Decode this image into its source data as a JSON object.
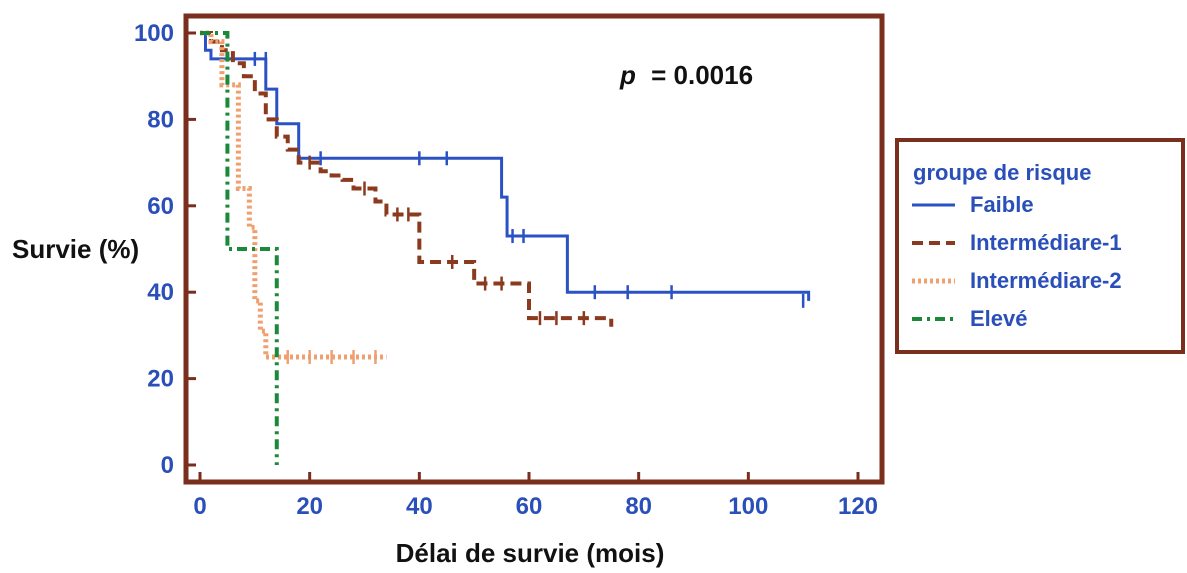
{
  "chart_data": {
    "type": "line",
    "xlabel": "Délai de survie (mois)",
    "ylabel": "Survie (%)",
    "xlim": [
      0,
      120
    ],
    "ylim": [
      0,
      100
    ],
    "x_ticks": [
      0,
      20,
      40,
      60,
      80,
      100,
      120
    ],
    "y_ticks": [
      0,
      20,
      40,
      60,
      80,
      100
    ],
    "grid": false,
    "legend_position": "right",
    "annotation": {
      "p_label": "p",
      "p_value": "= 0.0016"
    },
    "legend": {
      "title": "groupe de risque"
    },
    "colors": {
      "frame": "#7a2e1e",
      "tick_text": "#2a4fb8",
      "legend_title": "#2a4fb8",
      "legend_text": "#2a4fb8"
    },
    "series": [
      {
        "name": "Faible",
        "color": "#2b52c4",
        "dash": "solid",
        "x": [
          0,
          1,
          2,
          10,
          12,
          14,
          17,
          18,
          54,
          55,
          56,
          67,
          111
        ],
        "y": [
          100,
          96,
          94,
          94,
          87,
          79,
          79,
          71,
          71,
          62,
          53,
          40,
          38
        ],
        "censor_x": [
          10,
          12,
          22,
          40,
          45,
          57,
          59,
          72,
          78,
          86,
          110
        ],
        "censor_y": [
          94,
          94,
          71,
          71,
          71,
          53,
          53,
          40,
          40,
          40,
          38
        ]
      },
      {
        "name": "Intermédiare-1",
        "color": "#8b3a1e",
        "dash": "dashed",
        "x": [
          0,
          2,
          4,
          6,
          8,
          10,
          12,
          14,
          16,
          18,
          22,
          24,
          26,
          28,
          32,
          34,
          38,
          40,
          48,
          50,
          58,
          60,
          75
        ],
        "y": [
          100,
          98,
          96,
          93,
          90,
          86,
          80,
          76,
          73,
          70,
          68,
          67,
          66,
          64,
          61,
          58,
          58,
          47,
          47,
          42,
          42,
          34,
          32
        ],
        "censor_x": [
          20,
          30,
          36,
          38,
          46,
          52,
          55,
          62,
          65,
          70
        ],
        "censor_y": [
          70,
          64,
          58,
          58,
          47,
          42,
          42,
          34,
          34,
          34
        ]
      },
      {
        "name": "Intermédiare-2",
        "color": "#f0a070",
        "dash": "dotted",
        "x": [
          0,
          2,
          4,
          7,
          9,
          10,
          11,
          12,
          34
        ],
        "y": [
          100,
          98,
          88,
          64,
          55,
          38,
          31,
          25,
          25
        ],
        "censor_x": [
          16,
          20,
          24,
          28,
          32
        ],
        "censor_y": [
          25,
          25,
          25,
          25,
          25
        ]
      },
      {
        "name": "Elevé",
        "color": "#1a8a3a",
        "dash": "dashdot",
        "x": [
          0,
          5,
          14,
          14
        ],
        "y": [
          100,
          50,
          50,
          0
        ],
        "censor_x": [],
        "censor_y": []
      }
    ]
  }
}
